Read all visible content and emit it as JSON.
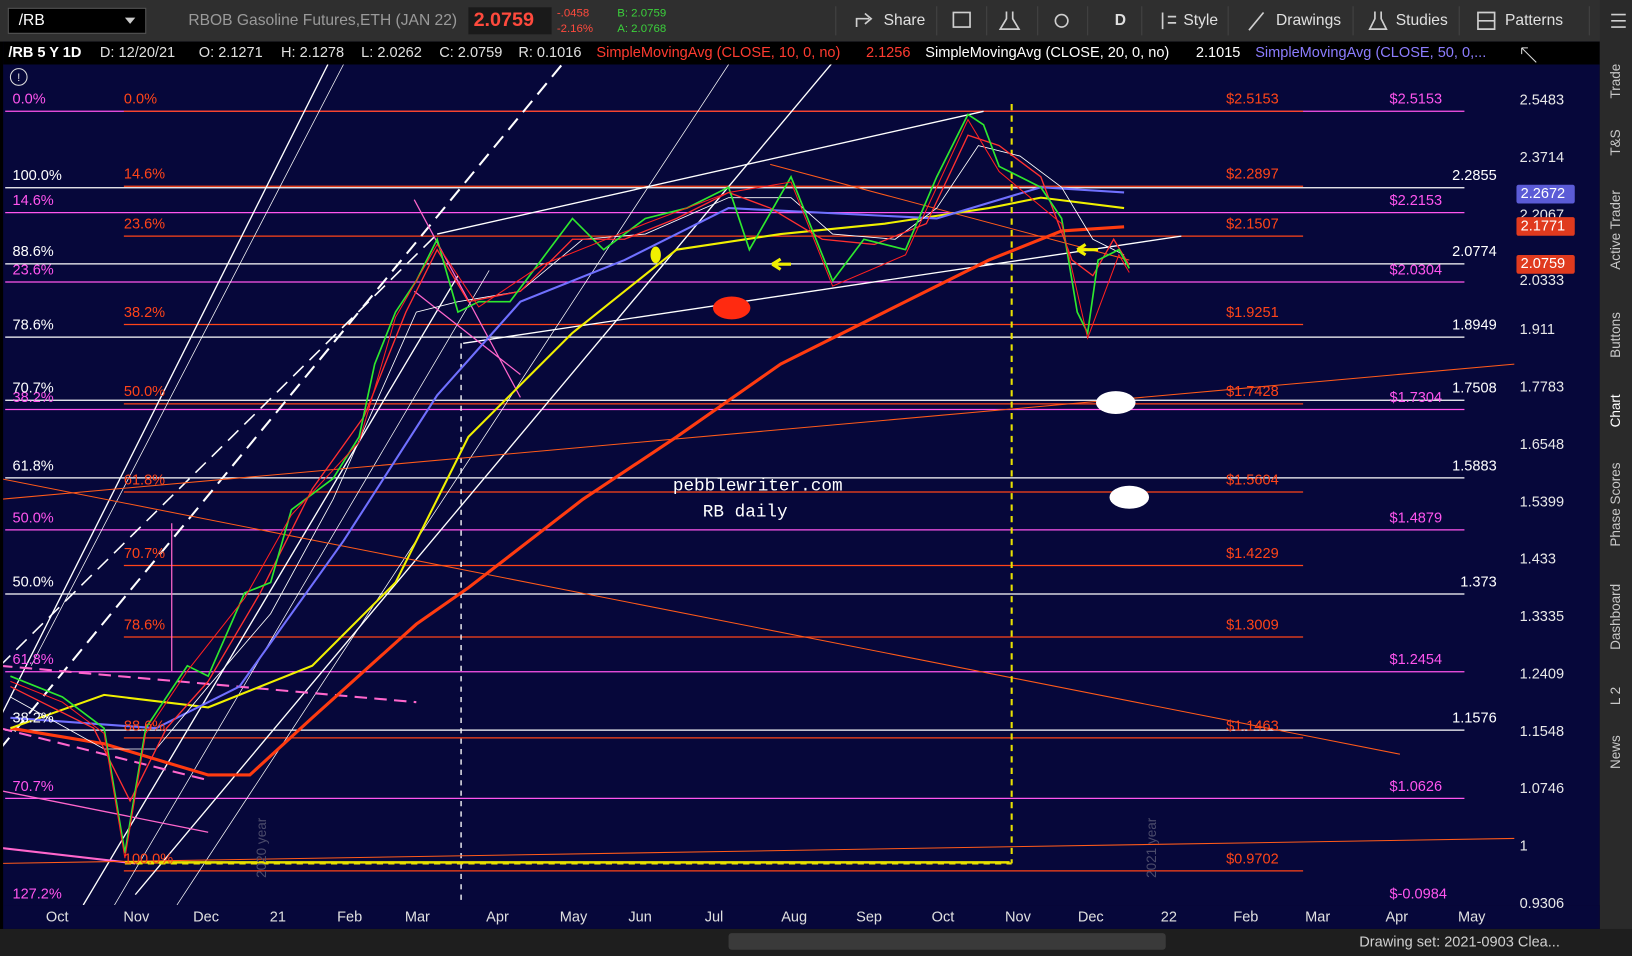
{
  "toolbar": {
    "symbol": "/RB",
    "description": "RBOB Gasoline Futures,ETH (JAN 22)",
    "last": "2.0759",
    "change": "-.0458",
    "change_pct": "-2.16%",
    "bid": "B: 2.0759",
    "ask": "A: 2.0768",
    "buttons": [
      "Share",
      "D",
      "Style",
      "Drawings",
      "Studies",
      "Patterns"
    ]
  },
  "header": {
    "items": [
      {
        "text": "/RB 5 Y 1D",
        "color": "#ffffff"
      },
      {
        "text": "D: 12/20/21",
        "color": "#e0e0e0"
      },
      {
        "text": "O: 2.1271",
        "color": "#e0e0e0"
      },
      {
        "text": "H: 2.1278",
        "color": "#e0e0e0"
      },
      {
        "text": "L: 2.0262",
        "color": "#e0e0e0"
      },
      {
        "text": "C: 2.0759",
        "color": "#e0e0e0"
      },
      {
        "text": "R: 0.1016",
        "color": "#e0e0e0"
      },
      {
        "text": "SimpleMovingAvg (CLOSE, 10, 0, no)",
        "color": "#ff3b30"
      },
      {
        "text": "2.1256",
        "color": "#ff3b30"
      },
      {
        "text": "SimpleMovingAvg (CLOSE, 20, 0, no)",
        "color": "#ffffff"
      },
      {
        "text": "2.1015",
        "color": "#ffffff"
      },
      {
        "text": "SimpleMovingAvg (CLOSE, 50, 0,...",
        "color": "#8c7dff"
      }
    ]
  },
  "chart": {
    "price_axis": [
      "2.5483",
      "2.3714",
      "2.2067",
      "2.0333",
      "1.911",
      "1.7783",
      "1.6548",
      "1.5399",
      "1.433",
      "1.3335",
      "1.2409",
      "1.1548",
      "1.0746",
      "1",
      "0.9306"
    ],
    "price_tags": [
      {
        "label": "2.2672",
        "color": "#5b5bd6"
      },
      {
        "label": "2.1771",
        "color": "#e03a1e"
      },
      {
        "label": "2.0759",
        "color": "#e03a1e"
      }
    ],
    "fib_white": [
      {
        "left": "100.0%",
        "right": "2.2855"
      },
      {
        "left": "88.6%",
        "right": "2.0774"
      },
      {
        "left": "78.6%",
        "right": "1.8949"
      },
      {
        "left": "70.7%",
        "right": "1.7508"
      },
      {
        "left": "61.8%",
        "right": "1.5883"
      },
      {
        "left": "50.0%",
        "right": "1.373"
      },
      {
        "left": "38.2%",
        "right": "1.1576"
      }
    ],
    "fib_red": [
      {
        "left": "0.0%",
        "right": "$2.5153"
      },
      {
        "left": "14.6%",
        "right": "$2.2897"
      },
      {
        "left": "23.6%",
        "right": "$2.1507"
      },
      {
        "left": "38.2%",
        "right": "$1.9251"
      },
      {
        "left": "50.0%",
        "right": "$1.7428"
      },
      {
        "left": "61.8%",
        "right": "$1.5604"
      },
      {
        "left": "70.7%",
        "right": "$1.4229"
      },
      {
        "left": "78.6%",
        "right": "$1.3009"
      },
      {
        "left": "88.6%",
        "right": "$1.1463"
      },
      {
        "left": "100.0%",
        "right": "$0.9702"
      }
    ],
    "fib_magenta": [
      {
        "left": "0.0%",
        "right": "$2.5153"
      },
      {
        "left": "14.6%",
        "right": "$2.2153"
      },
      {
        "left": "23.6%",
        "right": "$2.0304"
      },
      {
        "left": "38.2%",
        "right": "$1.7304"
      },
      {
        "left": "50.0%",
        "right": "$1.4879"
      },
      {
        "left": "61.8%",
        "right": "$1.2454"
      },
      {
        "left": "70.7%",
        "right": "$1.0626"
      },
      {
        "left": "127.2%",
        "right": "$-0.0984"
      }
    ],
    "months": [
      "Oct",
      "Nov",
      "Dec",
      "21",
      "Feb",
      "Mar",
      "Apr",
      "May",
      "Jun",
      "Jul",
      "Aug",
      "Sep",
      "Oct",
      "Nov",
      "Dec",
      "22",
      "Feb",
      "Mar",
      "Apr",
      "May"
    ],
    "watermarks": [
      "2020 year",
      "2021 year"
    ],
    "annotations": [
      "pebblewriter.com",
      "RB daily"
    ]
  },
  "sidebar": [
    "Trade",
    "T&S",
    "Active Trader",
    "Buttons",
    "Chart",
    "Phase Scores",
    "Dashboard",
    "L 2",
    "News"
  ],
  "status": "Drawing set: 2021-0903 Clea..."
}
